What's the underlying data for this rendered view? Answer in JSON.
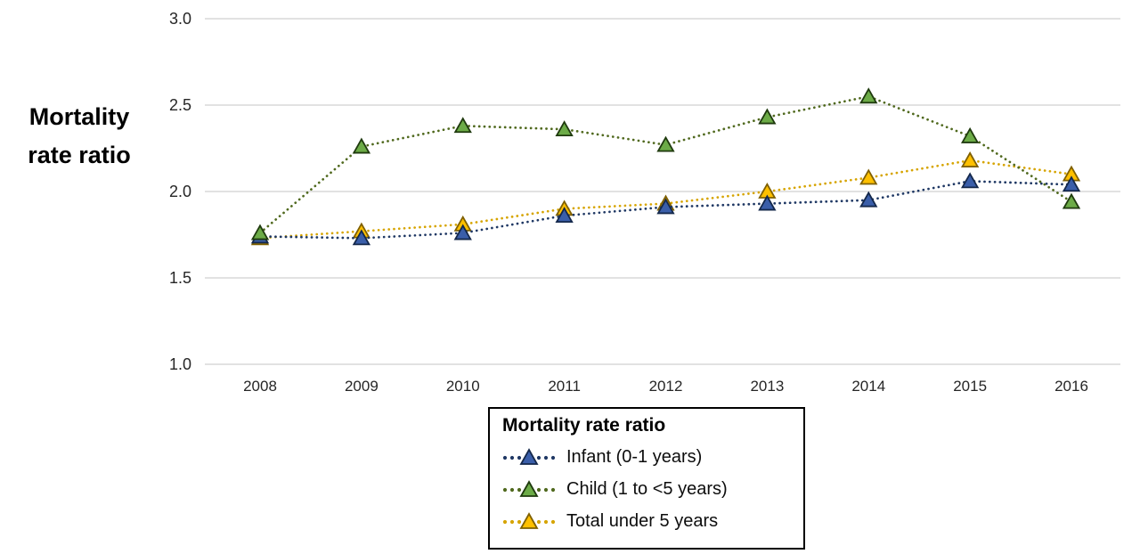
{
  "chart_data": {
    "type": "line",
    "title": "",
    "y_axis_label": "Mortality rate ratio",
    "y_axis_label_lines": [
      "Mortality",
      "rate ratio"
    ],
    "x": [
      2008,
      2009,
      2010,
      2011,
      2012,
      2013,
      2014,
      2015,
      2016
    ],
    "xlabel": "",
    "ylabel": "Mortality rate ratio",
    "ylim": [
      1.0,
      3.0
    ],
    "yticks": [
      3.0,
      2.5,
      2.0,
      1.5,
      1.0
    ],
    "ytick_labels": [
      "3.0",
      "2.5",
      "2.0",
      "1.5",
      "1.0"
    ],
    "grid": true,
    "line_style": "dotted",
    "marker": "triangle",
    "series": [
      {
        "name": "Infant (0-1 years)",
        "values": [
          1.74,
          1.73,
          1.76,
          1.86,
          1.91,
          1.93,
          1.95,
          2.06,
          2.04
        ],
        "line_color": "#1F3864",
        "marker_fill": "#3A5EA9",
        "marker_stroke": "#14284B"
      },
      {
        "name": "Child (1 to <5 years)",
        "values": [
          1.76,
          2.26,
          2.38,
          2.36,
          2.27,
          2.43,
          2.55,
          2.32,
          1.94
        ],
        "line_color": "#50691E",
        "marker_fill": "#6CAB47",
        "marker_stroke": "#1F3A0E"
      },
      {
        "name": "Total under 5 years",
        "values": [
          1.73,
          1.77,
          1.81,
          1.9,
          1.93,
          2.0,
          2.08,
          2.18,
          2.1
        ],
        "line_color": "#D6A400",
        "marker_fill": "#FFC000",
        "marker_stroke": "#7F6000"
      }
    ],
    "legend": {
      "title": "Mortality rate ratio",
      "position": "bottom",
      "entries": [
        "Infant (0-1 years)",
        "Child (1 to <5 years)",
        "Total under 5 years"
      ]
    }
  },
  "colors": {
    "background": "#ffffff",
    "gridline": "#D9D9D9",
    "axis_text": "#262626",
    "legend_border": "#000000"
  }
}
